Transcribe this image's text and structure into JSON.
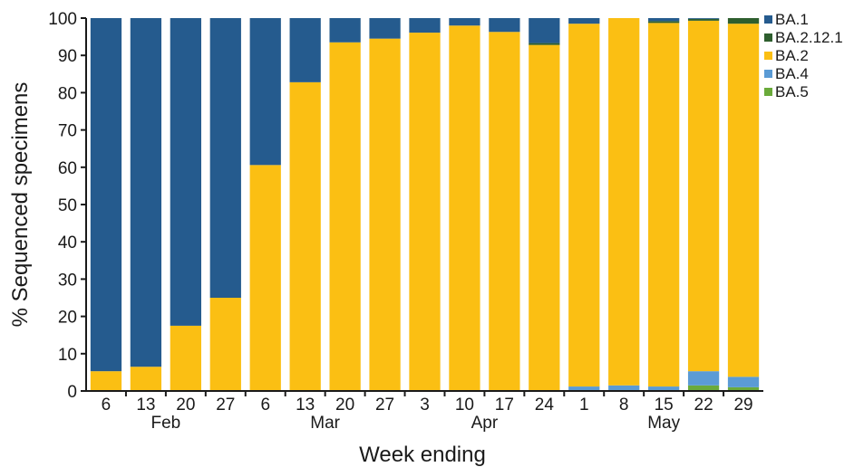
{
  "chart_data": {
    "type": "bar",
    "stacked": true,
    "xlabel": "Week ending",
    "ylabel": "% Sequenced specimens",
    "ylim": [
      0,
      100
    ],
    "yticks": [
      "0",
      "10",
      "20",
      "30",
      "40",
      "50",
      "60",
      "70",
      "80",
      "90",
      "100"
    ],
    "grid": false,
    "legend_position": "top-right",
    "categories": [
      "6",
      "13",
      "20",
      "27",
      "6",
      "13",
      "20",
      "27",
      "3",
      "10",
      "17",
      "24",
      "1",
      "8",
      "15",
      "22",
      "29"
    ],
    "month_labels": [
      {
        "label": "Feb",
        "first": 0,
        "last": 3
      },
      {
        "label": "Mar",
        "first": 4,
        "last": 7
      },
      {
        "label": "Apr",
        "first": 8,
        "last": 11
      },
      {
        "label": "May",
        "first": 12,
        "last": 16
      }
    ],
    "series": [
      {
        "name": "BA.5",
        "color": "#6aaa3a",
        "values": [
          0,
          0,
          0,
          0,
          0,
          0,
          0,
          0,
          0,
          0,
          0,
          0,
          0,
          0,
          0,
          1.5,
          1
        ]
      },
      {
        "name": "BA.4",
        "color": "#5b9bd5",
        "values": [
          0,
          0,
          0,
          0,
          0,
          0,
          0,
          0,
          0,
          0,
          0,
          0,
          1.2,
          1.5,
          1.2,
          3.8,
          2.8
        ]
      },
      {
        "name": "BA.2",
        "color": "#fbbf13",
        "values": [
          5.3,
          6.5,
          17.5,
          25,
          60.6,
          82.8,
          93.5,
          94.5,
          96.1,
          98,
          96.3,
          92.8,
          97.3,
          98.5,
          97.5,
          94,
          94.7
        ]
      },
      {
        "name": "BA.2.12.1",
        "color": "#2e5e2e",
        "values": [
          0,
          0,
          0,
          0,
          0,
          0,
          0,
          0,
          0,
          0,
          0,
          0.5,
          0,
          0,
          0.5,
          0.5,
          1.5
        ]
      },
      {
        "name": "BA.1",
        "color": "#255b8e",
        "values": [
          94.7,
          93.5,
          82.5,
          75,
          39.4,
          17.2,
          6.5,
          5.5,
          3.9,
          2,
          3.7,
          6.7,
          1.5,
          0,
          0.8,
          0.2,
          0
        ]
      }
    ],
    "legend_order": [
      "BA.1",
      "BA.2.12.1",
      "BA.2",
      "BA.4",
      "BA.5"
    ]
  }
}
